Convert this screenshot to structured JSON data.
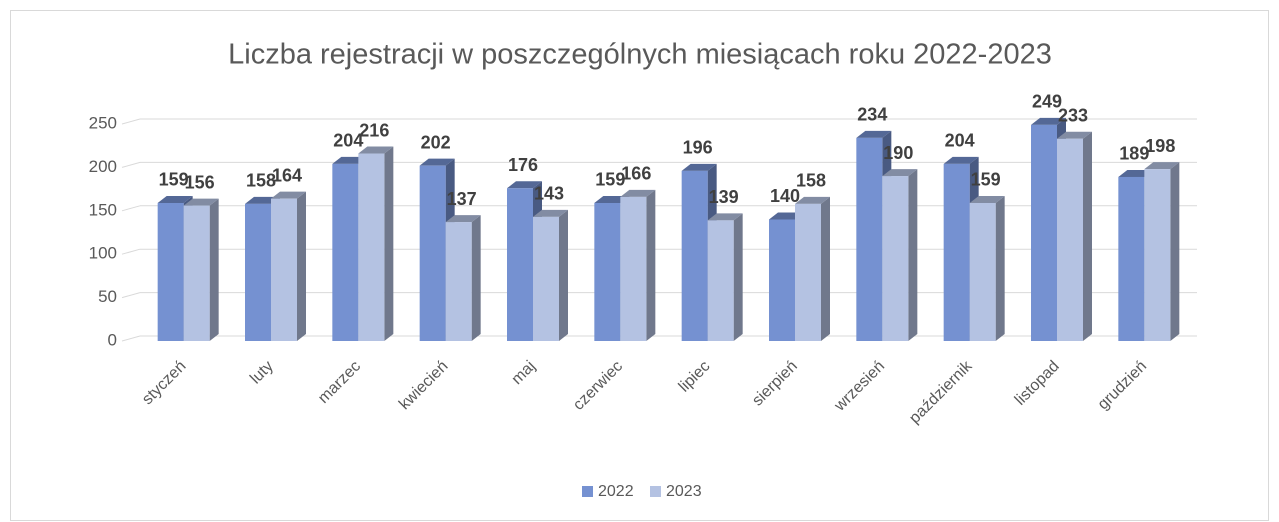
{
  "chart_data": {
    "type": "bar3d",
    "title": "Liczba rejestracji w poszczególnych miesiącach roku 2022-2023",
    "categories": [
      "styczeń",
      "luty",
      "marzec",
      "kwiecień",
      "maj",
      "czerwiec",
      "lipiec",
      "sierpień",
      "wrzesień",
      "październik",
      "listopad",
      "grudzień"
    ],
    "series": [
      {
        "name": "2022",
        "color": "#7591d1",
        "values": [
          159,
          158,
          204,
          202,
          176,
          159,
          196,
          140,
          234,
          204,
          249,
          189
        ]
      },
      {
        "name": "2023",
        "color": "#b4c2e2",
        "values": [
          156,
          164,
          216,
          137,
          143,
          166,
          139,
          158,
          190,
          159,
          233,
          198
        ]
      }
    ],
    "ylim": [
      0,
      250
    ],
    "yticks": [
      0,
      50,
      100,
      150,
      200,
      250
    ],
    "grid": true,
    "legend": "bottom"
  }
}
